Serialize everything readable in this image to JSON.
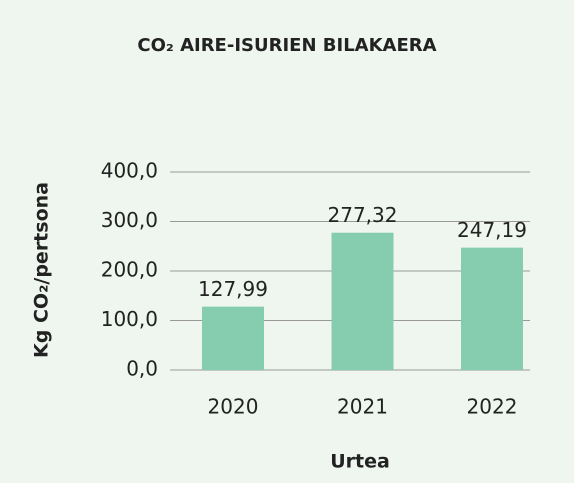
{
  "chart_data": {
    "type": "bar",
    "title": "CO₂ AIRE-ISURIEN BILAKAERA",
    "y_label": "Kg CO₂/pertsona",
    "x_label": "Urtea",
    "categories": [
      "2020",
      "2021",
      "2022"
    ],
    "values": [
      127.99,
      277.32,
      247.19
    ],
    "value_labels": [
      "127,99",
      "277,32",
      "247,19"
    ],
    "color": "#86cdb0",
    "ylim": [
      0,
      400
    ],
    "yticks": [
      {
        "value": 0,
        "label": "0,0"
      },
      {
        "value": 100,
        "label": "100,0"
      },
      {
        "value": 200,
        "label": "200,0"
      },
      {
        "value": 300,
        "label": "300,0"
      },
      {
        "value": 400,
        "label": "400,0"
      }
    ],
    "grid": true
  }
}
